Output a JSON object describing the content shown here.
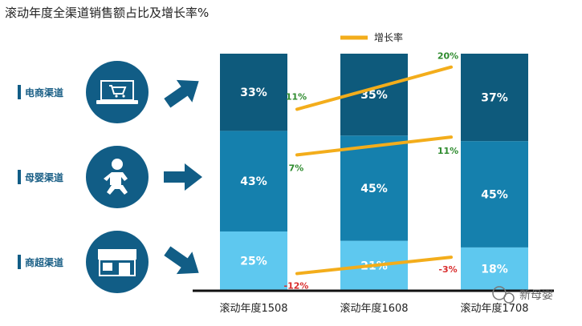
{
  "chart_data": {
    "type": "bar",
    "stacked": true,
    "title": "滚动年度全渠道销售额占比及增长率%",
    "categories": [
      "滚动年度1508",
      "滚动年度1608",
      "滚动年度1708"
    ],
    "series": [
      {
        "name": "电商渠道",
        "values": [
          33,
          35,
          37
        ],
        "value_labels": [
          "33%",
          "35%",
          "37%"
        ],
        "color": "#0e5a7c"
      },
      {
        "name": "母婴渠道",
        "values": [
          43,
          45,
          45
        ],
        "value_labels": [
          "43%",
          "45%",
          "45%"
        ],
        "color": "#1580ad"
      },
      {
        "name": "商超渠道",
        "values": [
          25,
          21,
          18
        ],
        "value_labels": [
          "25%",
          "21%",
          "18%"
        ],
        "color": "#5ec8ef"
      }
    ],
    "growth_legend": "增长率",
    "growth_color": "#f3ad1b",
    "growth": [
      {
        "channel": "电商渠道",
        "from": 11,
        "to": 20,
        "from_label": "11%",
        "to_label": "20%"
      },
      {
        "channel": "母婴渠道",
        "from": 7,
        "to": 11,
        "from_label": "7%",
        "to_label": "11%"
      },
      {
        "channel": "商超渠道",
        "from": -12,
        "to": -3,
        "from_label": "-12%",
        "to_label": "-3%"
      }
    ],
    "positive_color": "#2e8b2e",
    "negative_color": "#d92d2d",
    "icons": [
      "laptop-cart-icon",
      "baby-icon",
      "storefront-icon"
    ],
    "icon_color": "#115d86"
  },
  "watermark": "新母婴"
}
